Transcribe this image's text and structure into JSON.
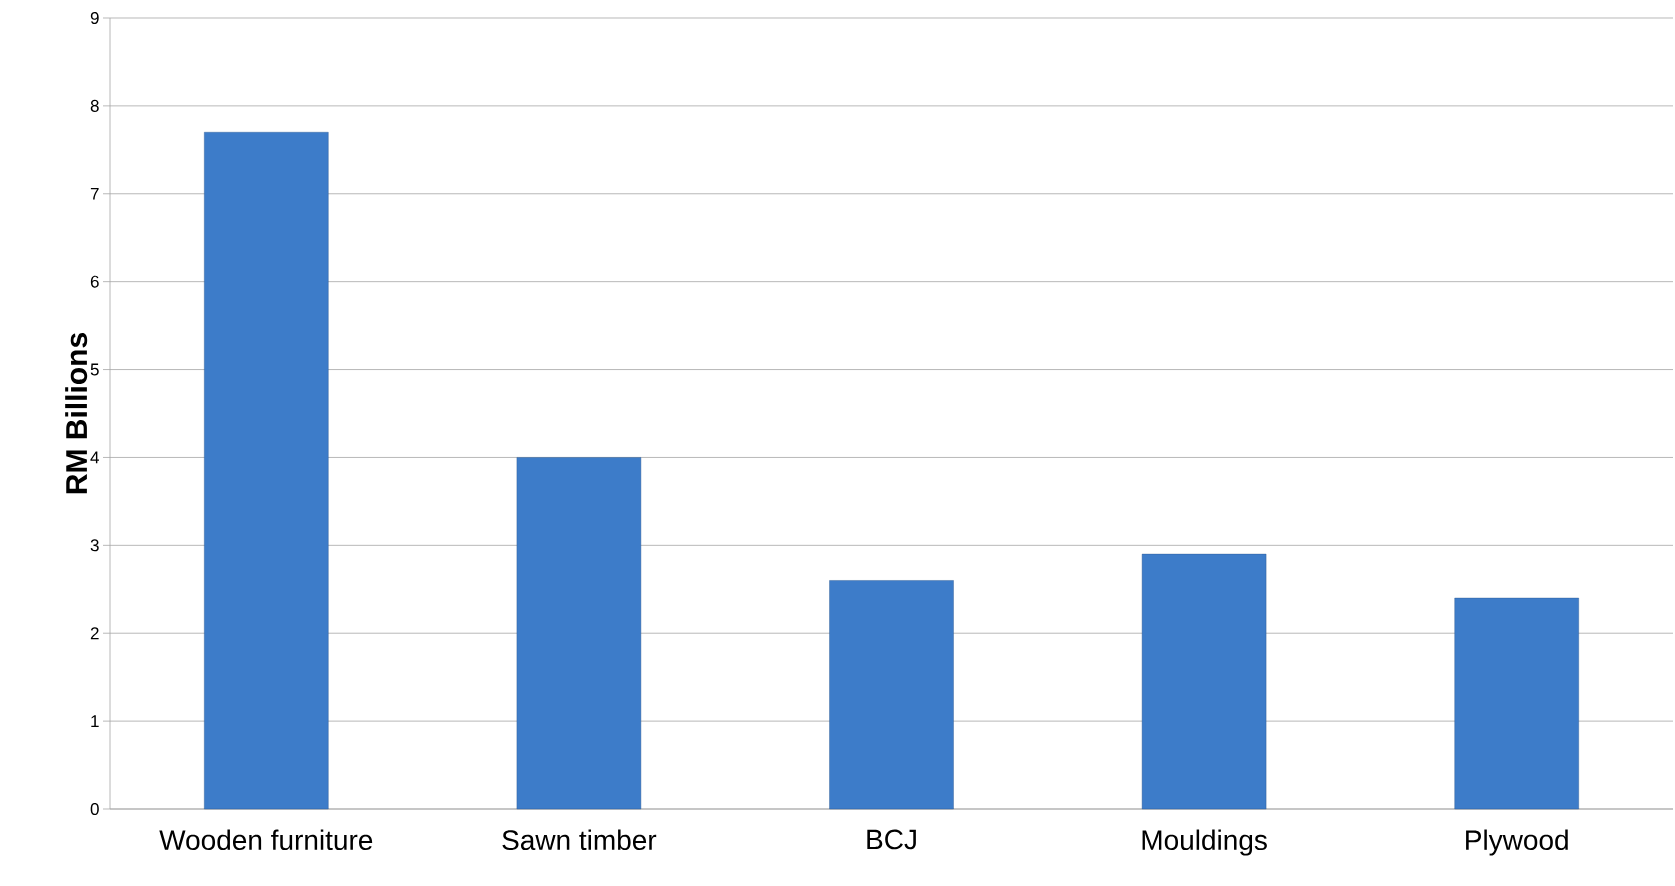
{
  "chart_data": {
    "type": "bar",
    "ylabel": "RM Billions",
    "categories": [
      "Wooden furniture",
      "Sawn timber",
      "BCJ",
      "Mouldings",
      "Plywood"
    ],
    "values": [
      7.7,
      4.0,
      2.6,
      2.9,
      2.4
    ],
    "color": "#3d7cc9",
    "ylim": [
      0,
      9
    ],
    "yticks": [
      0,
      1,
      2,
      3,
      4,
      5,
      6,
      7,
      8,
      9
    ],
    "grid": "y"
  }
}
